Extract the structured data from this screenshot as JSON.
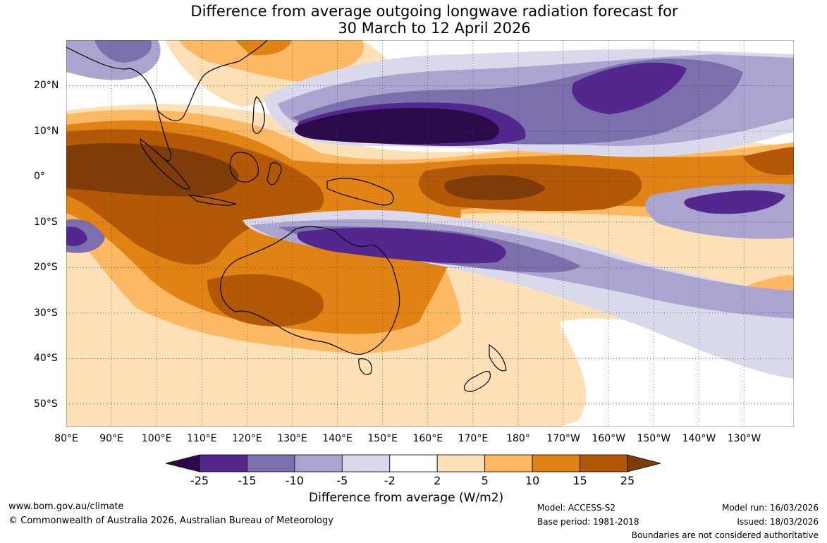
{
  "title": {
    "line1": "Difference from average outgoing longwave radiation forecast for",
    "line2": "30 March to 12 April 2026"
  },
  "axes": {
    "lon_labels": [
      "80°E",
      "90°E",
      "100°E",
      "110°E",
      "120°E",
      "130°E",
      "140°E",
      "150°E",
      "160°E",
      "170°E",
      "180°",
      "170°W",
      "160°W",
      "150°W",
      "140°W",
      "130°W"
    ],
    "lat_labels": [
      "20°N",
      "10°N",
      "0°",
      "10°S",
      "20°S",
      "30°S",
      "40°S",
      "50°S"
    ],
    "lon_range": [
      80,
      241
    ],
    "lat_range": [
      -55,
      30
    ]
  },
  "legend": {
    "title": "Difference from average (W/m2)",
    "labels": [
      "-25",
      "-15",
      "-10",
      "-5",
      "-2",
      "2",
      "5",
      "10",
      "15",
      "25"
    ],
    "colors": [
      "#2d0a4a",
      "#54278f",
      "#7b6fae",
      "#aba4cf",
      "#dad9ec",
      "#ffffff",
      "#fee0b6",
      "#fdb863",
      "#e08214",
      "#b35806",
      "#7f3b08"
    ]
  },
  "footer": {
    "website": "www.bom.gov.au/climate",
    "copyright": "© Commonwealth of Australia 2026, Australian Bureau of Meteorology",
    "model": "Model: ACCESS-S2",
    "base_period": "Base period: 1981-2018",
    "model_run": "Model run: 16/03/2026",
    "issued": "Issued: 18/03/2026",
    "disclaimer": "Boundaries are not considered authoritative"
  }
}
